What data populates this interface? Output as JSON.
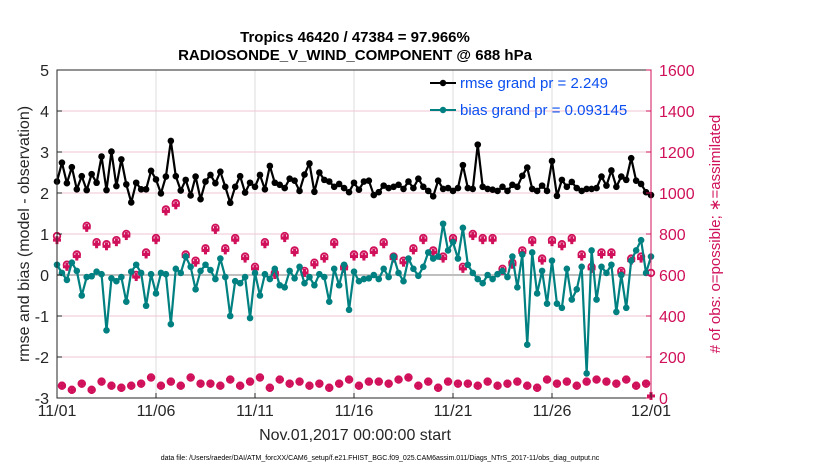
{
  "chart_data": {
    "type": "line",
    "title_lines": [
      "Tropics 46420 / 47384 = 97.966%",
      "RADIOSONDE_V_WIND_COMPONENT @ 688 hPa"
    ],
    "xlabel": "Nov.01,2017 00:00:00 start",
    "ylabel": "rmse and bias (model - observation)",
    "ylabel_right": "# of obs: o=possible; ∗=assimilated",
    "footnote": "data file: /Users/raeder/DAI/ATM_forcXX/CAM6_setup/f.e21.FHIST_BGC.f09_025.CAM6assim.011/Diags_NTrS_2017-11/obs_diag_output.nc",
    "xlim_days": [
      0,
      30
    ],
    "x_step_days": 0.25,
    "x_ticks": [
      {
        "day": 0,
        "label": "11/01"
      },
      {
        "day": 5,
        "label": "11/06"
      },
      {
        "day": 10,
        "label": "11/11"
      },
      {
        "day": 15,
        "label": "11/16"
      },
      {
        "day": 20,
        "label": "11/21"
      },
      {
        "day": 25,
        "label": "11/26"
      },
      {
        "day": 30,
        "label": "12/01"
      }
    ],
    "ylim": [
      -3,
      5
    ],
    "y_ticks": [
      -3,
      -2,
      -1,
      0,
      1,
      2,
      3,
      4,
      5
    ],
    "ylim_right": [
      0,
      1600
    ],
    "y_ticks_right": [
      0,
      200,
      400,
      600,
      800,
      1000,
      1200,
      1400,
      1600
    ],
    "grid": true,
    "legend_position": "top-right",
    "legend": [
      {
        "label": "rmse grand pr = 2.249",
        "color": "#000000"
      },
      {
        "label": "bias grand pr = 0.093145",
        "color": "#008080"
      }
    ],
    "colors": {
      "rmse": "#000000",
      "bias": "#008080",
      "obs": "#d0105a",
      "zero_line": "#bfbfbf",
      "grid": "#f2c6d6"
    },
    "series": [
      {
        "name": "rmse",
        "values": [
          2.28,
          2.74,
          2.24,
          2.63,
          2.09,
          2.41,
          2.07,
          2.46,
          2.25,
          2.89,
          2.07,
          3.01,
          2.17,
          2.82,
          2.21,
          1.77,
          2.25,
          2.09,
          2.09,
          2.54,
          2.33,
          1.99,
          2.4,
          3.27,
          2.41,
          2.06,
          2.32,
          1.94,
          2.4,
          1.85,
          2.28,
          2.44,
          2.24,
          2.52,
          2.15,
          1.76,
          2.15,
          2.41,
          2.01,
          2.25,
          2.15,
          2.44,
          2.09,
          2.66,
          2.25,
          2.2,
          2.12,
          2.35,
          2.3,
          2.05,
          2.45,
          2.72,
          2.03,
          2.5,
          2.32,
          2.28,
          2.15,
          2.22,
          2.12,
          2.02,
          2.25,
          2.08,
          2.28,
          2.3,
          1.95,
          2.02,
          2.18,
          2.12,
          2.15,
          2.2,
          2.1,
          2.28,
          2.12,
          2.35,
          2.15,
          2.05,
          1.92,
          2.3,
          2.1,
          2.12,
          2.05,
          2.12,
          2.68,
          2.12,
          2.1,
          3.18,
          2.15,
          2.1,
          2.08,
          2.05,
          2.15,
          2.05,
          2.2,
          2.15,
          2.42,
          2.62,
          2.1,
          2.05,
          2.18,
          2.05,
          2.78,
          1.93,
          2.32,
          2.15,
          2.27,
          2.12,
          2.05,
          2.1,
          2.1,
          2.12,
          2.4,
          2.18,
          2.55,
          2.15,
          2.4,
          2.32,
          2.85,
          2.3,
          2.22,
          2.02,
          1.95
        ]
      },
      {
        "name": "bias",
        "values": [
          0.25,
          0.05,
          -0.12,
          0.3,
          0.1,
          -0.5,
          -0.05,
          -0.03,
          0.08,
          0.02,
          -1.35,
          -0.08,
          -0.15,
          -0.05,
          -0.65,
          0.08,
          0.25,
          0.05,
          -0.75,
          0.02,
          -0.45,
          0.05,
          0.02,
          -1.2,
          0.15,
          0.05,
          0.45,
          0.2,
          -0.35,
          0.1,
          0.25,
          0.12,
          -0.1,
          0.4,
          -0.05,
          -1.0,
          -0.15,
          -0.2,
          -0.05,
          -1.05,
          0.05,
          -0.5,
          0.02,
          -0.1,
          0.15,
          -0.25,
          -0.3,
          0.1,
          -0.08,
          0.2,
          -0.2,
          -0.05,
          -0.25,
          0.02,
          -0.05,
          -0.65,
          0.15,
          -0.25,
          0.25,
          -0.85,
          0.08,
          -0.15,
          -0.1,
          -0.08,
          0.0,
          -0.1,
          0.15,
          -0.05,
          0.45,
          0.05,
          -0.15,
          0.4,
          0.15,
          -0.02,
          0.2,
          0.55,
          0.4,
          0.45,
          1.25,
          0.6,
          0.8,
          0.4,
          1.15,
          0.25,
          0.05,
          -0.1,
          -0.2,
          0.0,
          -0.1,
          0.02,
          0.1,
          -0.05,
          0.45,
          -0.3,
          0.5,
          -1.7,
          0.55,
          -0.45,
          0.1,
          -0.7,
          0.35,
          -0.7,
          -0.8,
          0.15,
          -0.6,
          -0.35,
          0.2,
          -2.4,
          0.6,
          -0.6,
          0.2,
          0.05,
          0.25,
          -0.9,
          0.0,
          -0.8,
          0.35,
          0.6,
          0.85,
          0.05,
          0.45
        ]
      },
      {
        "name": "obs_possible",
        "values": [
          790,
          60,
          650,
          40,
          700,
          70,
          840,
          40,
          760,
          80,
          750,
          60,
          770,
          50,
          800,
          60,
          600,
          70,
          710,
          100,
          780,
          60,
          920,
          80,
          950,
          60,
          700,
          100,
          670,
          70,
          730,
          70,
          830,
          60,
          730,
          90,
          780,
          60,
          690,
          80,
          640,
          100,
          760,
          50,
          610,
          90,
          790,
          70,
          720,
          80,
          620,
          60,
          660,
          70,
          690,
          50,
          760,
          70,
          640,
          90,
          700,
          60,
          700,
          80,
          720,
          80,
          760,
          70,
          690,
          90,
          670,
          100,
          730,
          60,
          780,
          80,
          720,
          50,
          690,
          80,
          780,
          70,
          640,
          70,
          800,
          60,
          780,
          80,
          780,
          60,
          630,
          70,
          660,
          80,
          720,
          60,
          770,
          50,
          680,
          90,
          770,
          70,
          750,
          80,
          780,
          60,
          700,
          80,
          640,
          90,
          710,
          80,
          710,
          70,
          620,
          90,
          680,
          60,
          690,
          70,
          610
        ]
      },
      {
        "name": "obs_assimilated",
        "values": [
          770,
          60,
          640,
          40,
          690,
          70,
          830,
          40,
          750,
          80,
          740,
          60,
          760,
          50,
          790,
          60,
          590,
          70,
          700,
          100,
          770,
          60,
          910,
          80,
          940,
          60,
          690,
          100,
          660,
          70,
          720,
          70,
          820,
          60,
          720,
          90,
          770,
          60,
          680,
          80,
          630,
          100,
          750,
          50,
          600,
          90,
          780,
          70,
          710,
          80,
          610,
          60,
          650,
          70,
          680,
          50,
          750,
          70,
          630,
          90,
          690,
          60,
          690,
          80,
          710,
          80,
          750,
          70,
          680,
          90,
          660,
          100,
          720,
          60,
          770,
          80,
          710,
          50,
          680,
          80,
          770,
          70,
          630,
          70,
          790,
          60,
          770,
          80,
          770,
          60,
          620,
          70,
          650,
          80,
          710,
          60,
          760,
          50,
          670,
          90,
          760,
          70,
          740,
          80,
          770,
          60,
          690,
          80,
          630,
          90,
          700,
          80,
          700,
          70,
          610,
          90,
          670,
          60,
          680,
          70,
          10
        ]
      }
    ]
  }
}
